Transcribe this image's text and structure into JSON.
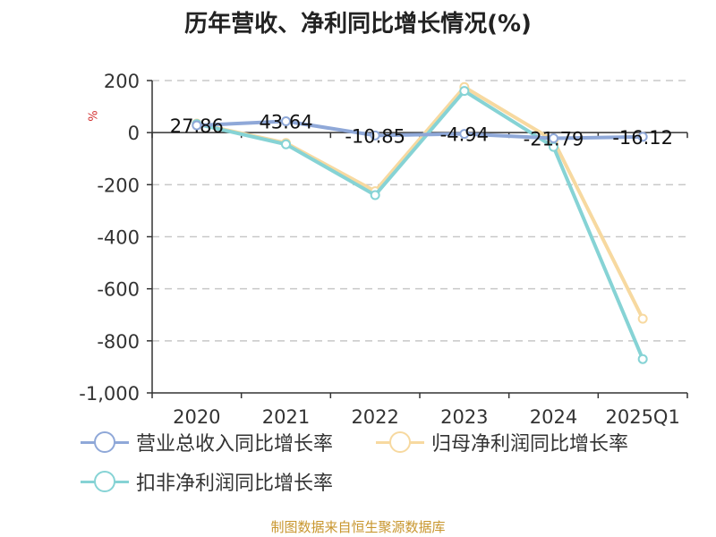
{
  "page": {
    "title": "历年营收、净利同比增长情况(%)",
    "unit_label": "%",
    "source": "制图数据来自恒生聚源数据库"
  },
  "chart_data": {
    "type": "line",
    "title": "历年营收、净利同比增长情况(%)",
    "ylabel": "%",
    "xlabel": "",
    "categories": [
      "2020",
      "2021",
      "2022",
      "2023",
      "2024",
      "2025Q1"
    ],
    "ylim": [
      -1000,
      200
    ],
    "yticks": [
      200,
      0,
      -200,
      -400,
      -600,
      -800,
      -1000
    ],
    "ytick_labels": [
      "200",
      "0",
      "-200",
      "-400",
      "-600",
      "-800",
      "-1,000"
    ],
    "grid": true,
    "legend_position": "bottom",
    "series": [
      {
        "name": "营业总收入同比增长率",
        "color": "#8fa8d8",
        "values": [
          27.86,
          43.64,
          -10.85,
          -4.94,
          -21.79,
          -16.12
        ],
        "data_labels": [
          "27.86",
          "43.64",
          "-10.85",
          "-4.94",
          "-21.79",
          "-16.12"
        ]
      },
      {
        "name": "归母净利润同比增长率",
        "color": "#f7d9a0",
        "values": [
          35,
          -40,
          -225,
          175,
          -30,
          -715
        ]
      },
      {
        "name": "扣非净利润同比增长率",
        "color": "#86d3d5",
        "values": [
          33,
          -45,
          -240,
          160,
          -55,
          -870
        ]
      }
    ]
  }
}
